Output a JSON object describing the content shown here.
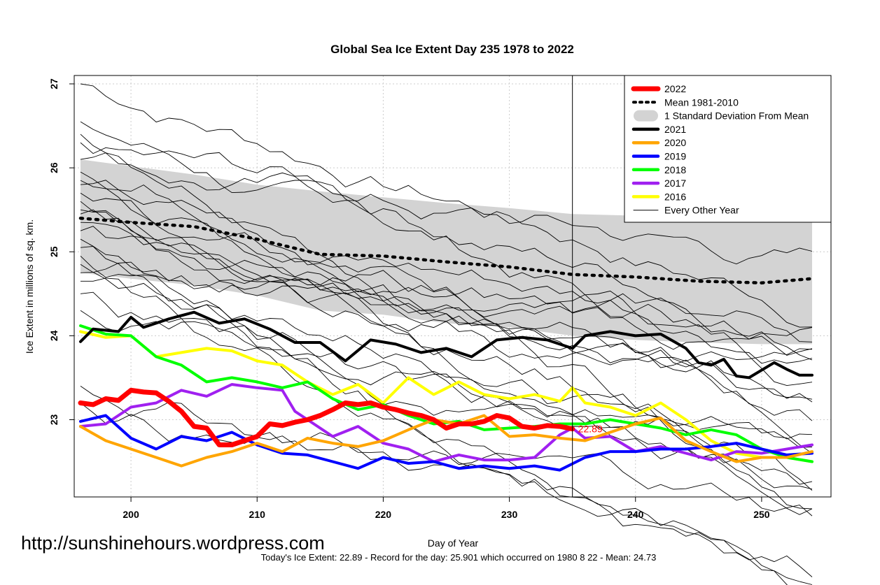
{
  "chart_data": {
    "type": "line",
    "title": "Global Sea Ice Extent Day 235 1978 to 2022",
    "xlabel": "Day of Year",
    "ylabel": "Ice Extent in millions of sq. km.",
    "xlim": [
      195.5,
      255.5
    ],
    "ylim": [
      22.08,
      27.1
    ],
    "xticks": [
      "200",
      "210",
      "220",
      "230",
      "240",
      "250"
    ],
    "xtick_values": [
      200,
      210,
      220,
      230,
      240,
      250
    ],
    "yticks": [
      "23",
      "24",
      "25",
      "26",
      "27"
    ],
    "ytick_values": [
      23,
      24,
      25,
      26,
      27
    ],
    "grid": true,
    "legend_position": "top-right",
    "vline_day": 235,
    "end_label": "22.89",
    "legend": [
      {
        "label": "2022",
        "color": "#ff0000",
        "style": "thick"
      },
      {
        "label": "Mean 1981-2010",
        "color": "#000000",
        "style": "dotted"
      },
      {
        "label": "1 Standard Deviation From Mean",
        "color": "#d3d3d3",
        "style": "band"
      },
      {
        "label": "2021",
        "color": "#000000",
        "style": "line"
      },
      {
        "label": "2020",
        "color": "#ffa500",
        "style": "line"
      },
      {
        "label": "2019",
        "color": "#0000ff",
        "style": "line"
      },
      {
        "label": "2018",
        "color": "#00ff00",
        "style": "line"
      },
      {
        "label": "2017",
        "color": "#a020f0",
        "style": "line"
      },
      {
        "label": "2016",
        "color": "#ffff00",
        "style": "line"
      },
      {
        "label": "Every Other Year",
        "color": "#000000",
        "style": "thin"
      }
    ],
    "mean": {
      "x": [
        196,
        200,
        205,
        210,
        215,
        220,
        225,
        230,
        235,
        240,
        245,
        250,
        254
      ],
      "values": [
        25.4,
        25.35,
        25.3,
        25.15,
        24.97,
        24.95,
        24.88,
        24.82,
        24.73,
        24.7,
        24.65,
        24.63,
        24.68
      ]
    },
    "std_band": {
      "x": [
        196,
        200,
        205,
        210,
        215,
        220,
        225,
        230,
        235,
        240,
        245,
        250,
        254
      ],
      "upper": [
        26.1,
        26.02,
        25.92,
        25.8,
        25.72,
        25.65,
        25.58,
        25.52,
        25.45,
        25.43,
        25.4,
        25.38,
        25.48
      ],
      "lower": [
        24.75,
        24.68,
        24.6,
        24.48,
        24.3,
        24.25,
        24.15,
        24.1,
        24.0,
        23.95,
        23.92,
        23.9,
        23.9
      ]
    },
    "series": [
      {
        "name": "2016",
        "color": "#ffff00",
        "width": 4,
        "x": [
          196,
          198,
          200,
          202,
          204,
          206,
          208,
          210,
          212,
          214,
          216,
          218,
          220,
          222,
          224,
          226,
          228,
          230,
          232,
          234,
          235,
          236,
          238,
          240,
          242,
          244,
          246,
          248,
          250,
          252,
          254
        ],
        "values": [
          24.05,
          23.98,
          24.0,
          23.75,
          23.8,
          23.85,
          23.82,
          23.7,
          23.65,
          23.45,
          23.3,
          23.42,
          23.2,
          23.5,
          23.3,
          23.45,
          23.3,
          23.25,
          23.3,
          23.22,
          23.38,
          23.2,
          23.15,
          23.05,
          23.2,
          23.0,
          22.75,
          22.6,
          22.55,
          22.55,
          22.5
        ]
      },
      {
        "name": "2017",
        "color": "#a020f0",
        "width": 4,
        "x": [
          196,
          198,
          200,
          202,
          204,
          206,
          208,
          210,
          212,
          213,
          214,
          216,
          218,
          220,
          222,
          224,
          226,
          228,
          230,
          232,
          234,
          235,
          236,
          238,
          240,
          242,
          244,
          246,
          248,
          250,
          252,
          254
        ],
        "values": [
          22.92,
          22.95,
          23.15,
          23.2,
          23.35,
          23.28,
          23.42,
          23.38,
          23.35,
          23.1,
          23.0,
          22.8,
          22.92,
          22.72,
          22.65,
          22.5,
          22.58,
          22.52,
          22.52,
          22.55,
          22.82,
          22.9,
          22.78,
          22.8,
          22.62,
          22.68,
          22.6,
          22.52,
          22.62,
          22.6,
          22.65,
          22.7
        ]
      },
      {
        "name": "2018",
        "color": "#00ff00",
        "width": 4,
        "x": [
          196,
          198,
          200,
          202,
          204,
          206,
          208,
          210,
          212,
          214,
          216,
          218,
          220,
          222,
          224,
          226,
          228,
          230,
          232,
          234,
          236,
          238,
          240,
          242,
          244,
          246,
          248,
          250,
          252,
          254
        ],
        "values": [
          24.12,
          24.02,
          24.0,
          23.75,
          23.65,
          23.45,
          23.5,
          23.45,
          23.38,
          23.45,
          23.25,
          23.12,
          23.18,
          23.05,
          22.95,
          22.98,
          22.88,
          22.9,
          22.92,
          22.95,
          22.95,
          23.0,
          22.95,
          22.9,
          22.82,
          22.88,
          22.82,
          22.65,
          22.55,
          22.5
        ]
      },
      {
        "name": "2019",
        "color": "#0000ff",
        "width": 4,
        "x": [
          196,
          198,
          200,
          202,
          204,
          206,
          208,
          210,
          212,
          214,
          216,
          218,
          220,
          222,
          224,
          226,
          228,
          230,
          232,
          234,
          236,
          238,
          240,
          242,
          244,
          246,
          248,
          250,
          252,
          254
        ],
        "values": [
          22.98,
          23.05,
          22.78,
          22.65,
          22.8,
          22.75,
          22.85,
          22.7,
          22.6,
          22.58,
          22.5,
          22.42,
          22.55,
          22.48,
          22.5,
          22.42,
          22.45,
          22.42,
          22.45,
          22.4,
          22.55,
          22.62,
          22.62,
          22.65,
          22.65,
          22.68,
          22.72,
          22.65,
          22.58,
          22.6
        ]
      },
      {
        "name": "2020",
        "color": "#ffa500",
        "width": 4,
        "x": [
          196,
          198,
          200,
          202,
          204,
          206,
          208,
          210,
          212,
          214,
          216,
          218,
          220,
          222,
          224,
          226,
          228,
          230,
          232,
          234,
          236,
          238,
          240,
          242,
          244,
          246,
          248,
          250,
          252,
          254
        ],
        "values": [
          22.92,
          22.75,
          22.65,
          22.55,
          22.45,
          22.55,
          22.62,
          22.72,
          22.62,
          22.78,
          22.72,
          22.68,
          22.75,
          22.88,
          23.0,
          22.95,
          23.05,
          22.8,
          22.82,
          22.78,
          22.75,
          22.85,
          22.95,
          23.02,
          22.75,
          22.62,
          22.5,
          22.55,
          22.55,
          22.62
        ]
      },
      {
        "name": "2021",
        "color": "#000000",
        "width": 4,
        "x": [
          196,
          197,
          199,
          200,
          201,
          203,
          205,
          207,
          209,
          211,
          213,
          215,
          217,
          219,
          221,
          223,
          225,
          227,
          229,
          231,
          233,
          235,
          236,
          238,
          240,
          242,
          244,
          245,
          246,
          247,
          248,
          249,
          251,
          252,
          253,
          254
        ],
        "values": [
          23.93,
          24.08,
          24.05,
          24.22,
          24.1,
          24.2,
          24.28,
          24.15,
          24.2,
          24.08,
          23.92,
          23.92,
          23.7,
          23.95,
          23.9,
          23.8,
          23.85,
          23.75,
          23.95,
          23.98,
          23.95,
          23.85,
          24.0,
          24.05,
          24.0,
          24.02,
          23.85,
          23.68,
          23.65,
          23.72,
          23.52,
          23.5,
          23.68,
          23.6,
          23.53,
          23.53
        ]
      },
      {
        "name": "2022",
        "color": "#ff0000",
        "width": 7,
        "x": [
          196,
          197,
          198,
          199,
          200,
          201,
          202,
          203,
          204,
          205,
          206,
          207,
          208,
          209,
          210,
          211,
          212,
          213,
          214,
          215,
          216,
          217,
          218,
          219,
          220,
          221,
          222,
          223,
          224,
          225,
          226,
          227,
          228,
          229,
          230,
          231,
          232,
          233,
          234,
          235
        ],
        "values": [
          23.2,
          23.18,
          23.25,
          23.23,
          23.35,
          23.33,
          23.32,
          23.22,
          23.1,
          22.92,
          22.9,
          22.7,
          22.7,
          22.75,
          22.8,
          22.95,
          22.93,
          22.97,
          23.0,
          23.05,
          23.12,
          23.2,
          23.18,
          23.2,
          23.15,
          23.12,
          23.08,
          23.05,
          23.0,
          22.9,
          22.95,
          22.95,
          22.98,
          23.05,
          23.02,
          22.92,
          22.9,
          22.93,
          22.92,
          22.89
        ]
      }
    ]
  },
  "footer": {
    "watermark": "http://sunshinehours.wordpress.com",
    "summary": "Today's Ice Extent: 22.89  - Record for the day: 25.901 which occurred on 1980 8 22  - Mean: 24.73"
  }
}
